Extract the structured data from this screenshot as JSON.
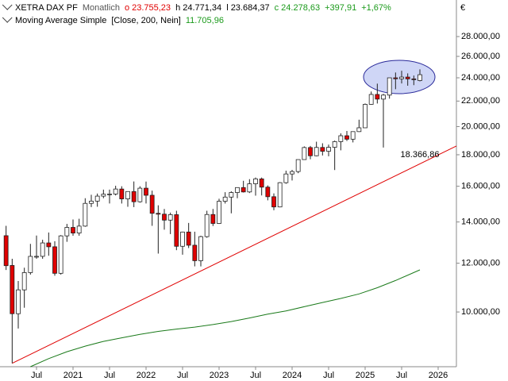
{
  "chart_data": {
    "type": "candlestick",
    "header": {
      "symbol": "XETRA DAX PF",
      "interval": "Monatlich",
      "open": "o 23.755,23",
      "high": "h 24.771,34",
      "low": "l 23.684,37",
      "close": "c 24.278,63",
      "change": "+397,91",
      "change_pct": "+1,67%"
    },
    "currency": "€",
    "log_scale": true,
    "xlim": [
      "2020-01",
      "2026-04"
    ],
    "ylim": [
      8150,
      32100
    ],
    "yticks": [
      {
        "value": 10000,
        "label": "10.000,00"
      },
      {
        "value": 12000,
        "label": "12.000,00"
      },
      {
        "value": 14000,
        "label": "14.000,00"
      },
      {
        "value": 16000,
        "label": "16.000,00"
      },
      {
        "value": 18000,
        "label": "18.000,00"
      },
      {
        "value": 20000,
        "label": "20.000,00"
      },
      {
        "value": 22000,
        "label": "22.000,00"
      },
      {
        "value": 24000,
        "label": "24.000,00"
      },
      {
        "value": 26000,
        "label": "26.000,00"
      },
      {
        "value": 28000,
        "label": "28.000,00"
      }
    ],
    "xticks": [
      {
        "value": "2020-07",
        "label": "Jul"
      },
      {
        "value": "2021-01",
        "label": "2021"
      },
      {
        "value": "2021-07",
        "label": "Jul"
      },
      {
        "value": "2022-01",
        "label": "2022"
      },
      {
        "value": "2022-07",
        "label": "Jul"
      },
      {
        "value": "2023-01",
        "label": "2023"
      },
      {
        "value": "2023-07",
        "label": "Jul"
      },
      {
        "value": "2024-01",
        "label": "2024"
      },
      {
        "value": "2024-07",
        "label": "Jul"
      },
      {
        "value": "2025-01",
        "label": "2025"
      },
      {
        "value": "2025-07",
        "label": "Jul"
      },
      {
        "value": "2026-01",
        "label": "2026"
      }
    ],
    "up_color": "#ffffff",
    "down_color": "#e00000",
    "x": [
      "2020-02",
      "2020-03",
      "2020-04",
      "2020-05",
      "2020-06",
      "2020-07",
      "2020-08",
      "2020-09",
      "2020-10",
      "2020-11",
      "2020-12",
      "2021-01",
      "2021-02",
      "2021-03",
      "2021-04",
      "2021-05",
      "2021-06",
      "2021-07",
      "2021-08",
      "2021-09",
      "2021-10",
      "2021-11",
      "2021-12",
      "2022-01",
      "2022-02",
      "2022-03",
      "2022-04",
      "2022-05",
      "2022-06",
      "2022-07",
      "2022-08",
      "2022-09",
      "2022-10",
      "2022-11",
      "2022-12",
      "2023-01",
      "2023-02",
      "2023-03",
      "2023-04",
      "2023-05",
      "2023-06",
      "2023-07",
      "2023-08",
      "2023-09",
      "2023-10",
      "2023-11",
      "2023-12",
      "2024-01",
      "2024-02",
      "2024-03",
      "2024-04",
      "2024-05",
      "2024-06",
      "2024-07",
      "2024-08",
      "2024-09",
      "2024-10",
      "2024-11",
      "2024-12",
      "2025-01",
      "2025-02",
      "2025-03",
      "2025-04",
      "2025-05",
      "2025-06",
      "2025-07",
      "2025-08",
      "2025-09",
      "2025-10"
    ],
    "open": [
      13300,
      11900,
      9936,
      10862,
      11587,
      12311,
      12313,
      12945,
      12761,
      11556,
      13291,
      13719,
      13433,
      13786,
      15008,
      15136,
      15421,
      15531,
      15544,
      15835,
      15261,
      15688,
      15100,
      15885,
      15471,
      14461,
      14415,
      14098,
      14388,
      12784,
      13484,
      12835,
      12114,
      13254,
      14397,
      13924,
      15128,
      15365,
      15629,
      15922,
      15664,
      16148,
      16447,
      15947,
      15387,
      14810,
      16215,
      16752,
      16904,
      17678,
      18492,
      17932,
      18498,
      18235,
      18509,
      18907,
      19325,
      19078,
      19626,
      19909,
      21732,
      22551,
      22163,
      22497,
      23997,
      23910,
      24065,
      23902,
      23755.23
    ],
    "high": [
      13800,
      12200,
      11230,
      11800,
      12900,
      13310,
      13100,
      13460,
      13030,
      13330,
      13900,
      14130,
      14170,
      15300,
      15500,
      15570,
      15800,
      15800,
      16030,
      16000,
      15700,
      16290,
      16000,
      16285,
      15740,
      14900,
      14700,
      14500,
      14600,
      13500,
      13950,
      13500,
      13300,
      14600,
      14700,
      15270,
      15650,
      15700,
      15900,
      16330,
      16430,
      16530,
      16530,
      16050,
      15580,
      16250,
      16960,
      17010,
      17500,
      18570,
      18600,
      18900,
      18790,
      18700,
      18980,
      19500,
      19670,
      19500,
      20520,
      21800,
      22800,
      23480,
      22600,
      24000,
      24480,
      24640,
      24400,
      24200,
      24771.34
    ],
    "low": [
      11700,
      8255,
      9400,
      10160,
      11500,
      12200,
      12200,
      12340,
      11450,
      11500,
      13000,
      13300,
      13300,
      13750,
      14800,
      14820,
      15300,
      15000,
      15460,
      15000,
      14820,
      14800,
      15050,
      15000,
      13800,
      12440,
      13600,
      13380,
      12600,
      12390,
      12700,
      11860,
      11860,
      13200,
      13790,
      13900,
      15000,
      14460,
      15300,
      15630,
      15600,
      15450,
      15460,
      15180,
      14630,
      14790,
      16150,
      16350,
      16800,
      17670,
      17700,
      17900,
      17950,
      17900,
      17000,
      18300,
      18950,
      18850,
      19600,
      19900,
      21700,
      21800,
      18490,
      22200,
      23000,
      23500,
      23300,
      23350,
      23684.37
    ],
    "close": [
      11890,
      9936,
      10862,
      11587,
      12311,
      12313,
      12945,
      12761,
      11556,
      13291,
      13719,
      13433,
      13786,
      15008,
      15136,
      15421,
      15531,
      15544,
      15835,
      15261,
      15688,
      15100,
      15885,
      15471,
      14461,
      14415,
      14098,
      14388,
      12784,
      13484,
      12835,
      12114,
      13254,
      14397,
      13924,
      15128,
      15365,
      15629,
      15922,
      15664,
      16148,
      16447,
      15947,
      15387,
      14810,
      16215,
      16752,
      16904,
      17678,
      18492,
      17932,
      18498,
      18235,
      18509,
      18907,
      19325,
      19078,
      19626,
      19909,
      21732,
      22551,
      22163,
      22497,
      23997,
      23910,
      24065,
      23902,
      23880.72,
      24278.63
    ],
    "indicator": {
      "name": "Moving Average Simple",
      "params": "[Close, 200, Nein]",
      "last_label": "11.705,96",
      "color": "#1a7a1a",
      "x": [
        "2020-06",
        "2020-09",
        "2020-12",
        "2021-03",
        "2021-06",
        "2021-09",
        "2021-12",
        "2022-03",
        "2022-06",
        "2022-09",
        "2022-12",
        "2023-03",
        "2023-06",
        "2023-09",
        "2023-12",
        "2024-03",
        "2024-06",
        "2024-09",
        "2024-12",
        "2025-03",
        "2025-06",
        "2025-10"
      ],
      "values": [
        8150,
        8400,
        8620,
        8800,
        8960,
        9080,
        9200,
        9300,
        9380,
        9450,
        9540,
        9650,
        9780,
        9920,
        10040,
        10200,
        10360,
        10520,
        10700,
        10950,
        11250,
        11705.96
      ]
    },
    "trendline": {
      "x": [
        "2020-03",
        "2026-04"
      ],
      "values": [
        8255,
        18600
      ],
      "color": "#e00000",
      "label_value": 18366.86,
      "label_x": "2025-10",
      "label": "18.366,86"
    }
  }
}
